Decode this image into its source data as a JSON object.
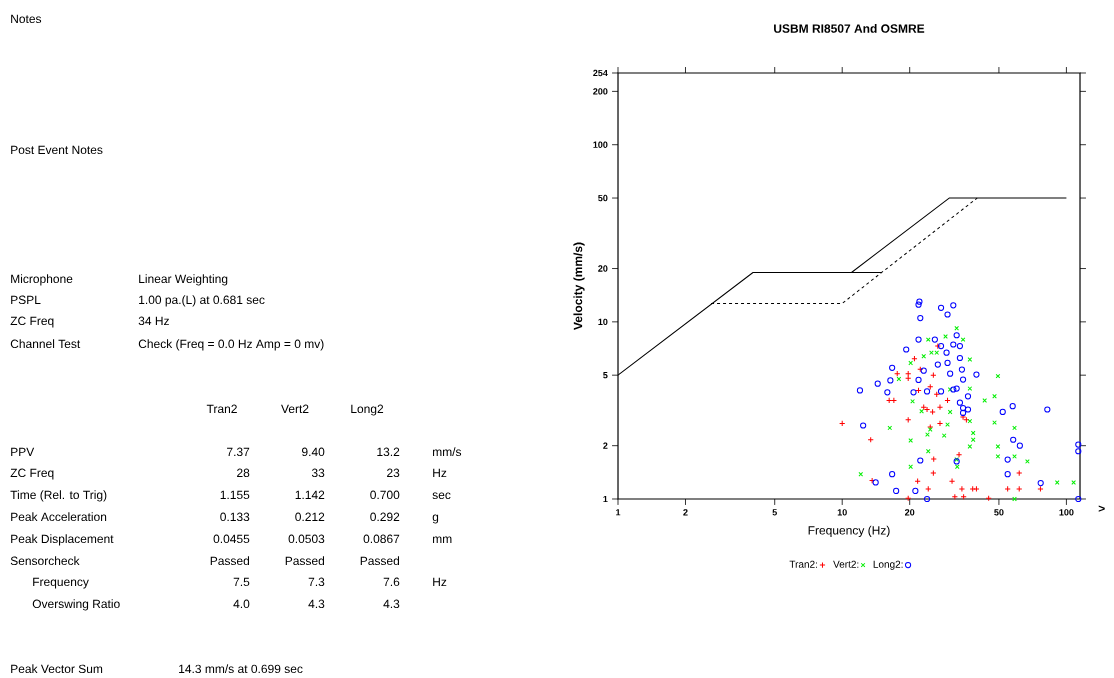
{
  "chart_data": [
    {
      "type": "other",
      "annotations": [
        "Notes",
        "Post Event Notes",
        "Microphone",
        "Linear Weighting",
        "PSPL",
        "1.00 pa.(L) at 0.681 sec",
        "ZC Freq",
        "34 Hz",
        "Channel Test",
        "Check (Freq = 0.0 Hz Amp = 0 mv)",
        "Tran2",
        "Vert2",
        "Long2",
        "PPV",
        "7.37",
        "9.40",
        "13.2",
        "mm/s",
        "ZC Freq",
        "28",
        "33",
        "23",
        "Hz",
        "Time (Rel. to Trig)",
        "1.155",
        "1.142",
        "0.700",
        "sec",
        "Peak Acceleration",
        "0.133",
        "0.212",
        "0.292",
        "g",
        "Peak Displacement",
        "0.0455",
        "0.0503",
        "0.0867",
        "mm",
        "Sensorcheck",
        "Passed",
        "Passed",
        "Passed",
        "Frequency",
        "7.5",
        "7.3",
        "7.6",
        "Hz",
        "Overswing Ratio",
        "4.0",
        "4.3",
        "4.3",
        "Peak Vector Sum",
        "14.3 mm/s at 0.699 sec"
      ]
    },
    {
      "type": "scatter",
      "title": "USBM RI8507 And OSMRE",
      "xlabel": "Frequency (Hz)",
      "ylabel": "Velocity (mm/s)",
      "log": "xy",
      "xlim": [
        1,
        115
      ],
      "ylim": [
        1,
        254
      ],
      "xticks": [
        1,
        2,
        5,
        10,
        20,
        50,
        100
      ],
      "yticks": [
        1,
        2,
        5,
        10,
        20,
        50,
        100,
        200,
        254
      ],
      "legend": "bottom",
      "annotations": [
        ">"
      ],
      "series": [
        {
          "type": "line",
          "color": "#000000",
          "line_style": "solid",
          "marker": "none",
          "x": [
            1,
            4,
            15
          ],
          "values": [
            5,
            19,
            19
          ]
        },
        {
          "type": "line",
          "color": "#000000",
          "line_style": "solid",
          "marker": "none",
          "x": [
            11,
            30,
            100
          ],
          "values": [
            19,
            50,
            50
          ]
        },
        {
          "type": "line",
          "color": "#000000",
          "line_style": "dashed",
          "marker": "none",
          "x": [
            2.6,
            10,
            15,
            40
          ],
          "values": [
            12.7,
            12.7,
            19,
            50
          ]
        },
        {
          "name": "Tran2:",
          "color": "#ff0000",
          "marker": "plus",
          "x": [
            10,
            13.4,
            13.6,
            16.2,
            17,
            17.6,
            19.7,
            19.7,
            21,
            19.7,
            21.9,
            22.3,
            23.1,
            23.9,
            25.3,
            24.7,
            25.5,
            26.4,
            27.3,
            27.3,
            24.7,
            29.5,
            34.6,
            35.8,
            25.6,
            25.5,
            21.7,
            24.2,
            19.7,
            30.9,
            33.2,
            34.2,
            38.2,
            39.7,
            31.8,
            34.8,
            45,
            54.7,
            61.6,
            61.6,
            76.6,
            26.7
          ],
          "values": [
            2.67,
            2.16,
            1.27,
            3.6,
            3.6,
            5.1,
            5.1,
            4.8,
            6.2,
            2.8,
            4.1,
            5.4,
            3.3,
            3.2,
            3.1,
            4.3,
            5.0,
            3.9,
            3.3,
            2.67,
            2.55,
            3.6,
            2.9,
            2.8,
            1.68,
            1.4,
            1.26,
            1.14,
            1.01,
            1.26,
            1.78,
            1.14,
            1.14,
            1.14,
            1.03,
            1.03,
            1.01,
            1.14,
            1.14,
            1.4,
            1.14,
            7.3
          ]
        },
        {
          "name": "Vert2:",
          "color": "#00ee00",
          "marker": "cross",
          "x": [
            12.1,
            16.3,
            17.9,
            20.2,
            20.2,
            20.6,
            22.6,
            24,
            24.2,
            24.7,
            20.2,
            23.1,
            24.2,
            25,
            26.4,
            28.9,
            32.4,
            34.6,
            37.1,
            37.1,
            30.3,
            30.3,
            29.5,
            28.5,
            37.1,
            38.4,
            38.4,
            37.1,
            32.6,
            32.4,
            43.2,
            47.8,
            49.5,
            47.8,
            49.5,
            49.5,
            58.7,
            58.7,
            67,
            58.7,
            91,
            107.7
          ],
          "values": [
            1.38,
            2.52,
            4.76,
            2.14,
            1.52,
            3.56,
            3.13,
            2.31,
            1.86,
            2.47,
            5.86,
            6.4,
            7.94,
            6.7,
            6.7,
            8.26,
            9.2,
            7.94,
            6.13,
            4.2,
            4.15,
            3.1,
            2.63,
            2.28,
            2.75,
            2.36,
            2.16,
            1.98,
            1.52,
            1.67,
            3.6,
            3.8,
            4.94,
            2.7,
            1.98,
            1.74,
            2.52,
            1.74,
            1.63,
            1.0,
            1.24,
            1.24
          ]
        },
        {
          "name": "Long2:",
          "color": "#0000ff",
          "marker": "circle",
          "x": [
            21.9,
            22.1,
            22.3,
            27.6,
            29.5,
            31.3,
            21.9,
            19.3,
            16.7,
            16.4,
            14.4,
            15.9,
            12,
            12.4,
            14.1,
            16.7,
            17.4,
            21.2,
            22.3,
            23.9,
            20.8,
            21.9,
            23.1,
            23.9,
            26.7,
            25.9,
            27.6,
            29.2,
            29.5,
            30.3,
            31.3,
            32.4,
            33.5,
            33.5,
            34.2,
            34.6,
            31.3,
            27.6,
            32.4,
            33.5,
            34.6,
            36.4,
            34.6,
            36.4,
            39.7,
            32.4,
            52,
            57.6,
            57.9,
            62,
            54.7,
            54.7,
            76.8,
            82.2,
            113,
            113,
            113
          ],
          "values": [
            12.5,
            13,
            10.5,
            12,
            11,
            12.4,
            7.94,
            6.98,
            5.5,
            4.67,
            4.48,
            4,
            4.1,
            2.6,
            1.24,
            1.38,
            1.11,
            1.11,
            1.65,
            1.0,
            4,
            4.7,
            5.3,
            4.05,
            5.74,
            7.94,
            7.3,
            6.7,
            5.86,
            5.1,
            7.45,
            8.4,
            7.3,
            6.25,
            5.38,
            4.72,
            4.15,
            4.05,
            4.2,
            3.5,
            3.26,
            3.2,
            3.06,
            3.8,
            5.04,
            1.63,
            3.1,
            3.34,
            2.16,
            2.0,
            1.67,
            1.38,
            1.23,
            3.2,
            2.03,
            1.86,
            1.0
          ]
        }
      ]
    }
  ]
}
